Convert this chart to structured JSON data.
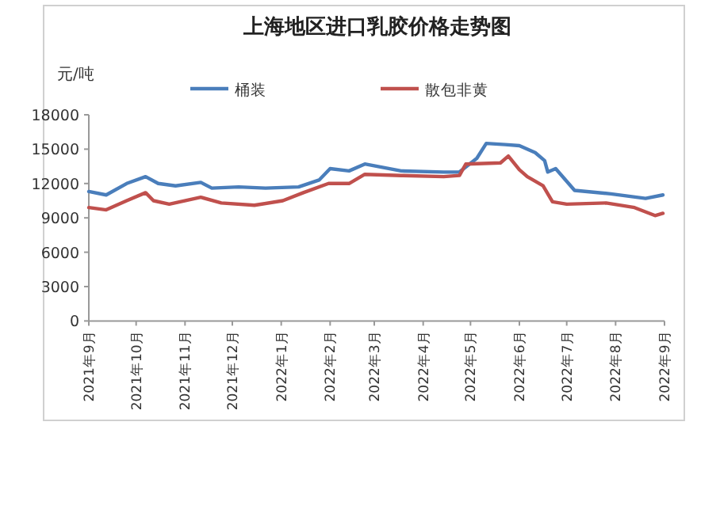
{
  "chart_data": {
    "type": "line",
    "title": "上海地区进口乳胶价格走势图",
    "ylabel": "元/吨",
    "legend": "top",
    "grid": false,
    "marker": "none",
    "line_style": "solid",
    "xlim": [
      "2021-09-01",
      "2022-09-01"
    ],
    "xticks": [
      {
        "value": "2021-09-01",
        "label": "2021年9月"
      },
      {
        "value": "2021-10-01",
        "label": "2021年10月"
      },
      {
        "value": "2021-11-01",
        "label": "2021年11月"
      },
      {
        "value": "2021-12-01",
        "label": "2021年12月"
      },
      {
        "value": "2022-01-01",
        "label": "2022年1月"
      },
      {
        "value": "2022-02-01",
        "label": "2022年2月"
      },
      {
        "value": "2022-03-01",
        "label": "2022年3月"
      },
      {
        "value": "2022-04-01",
        "label": "2022年4月"
      },
      {
        "value": "2022-05-01",
        "label": "2022年5月"
      },
      {
        "value": "2022-06-01",
        "label": "2022年6月"
      },
      {
        "value": "2022-07-01",
        "label": "2022年7月"
      },
      {
        "value": "2022-08-01",
        "label": "2022年8月"
      },
      {
        "value": "2022-09-01",
        "label": "2022年9月"
      }
    ],
    "ylim": [
      0,
      18000
    ],
    "yticks": [
      0,
      3000,
      6000,
      9000,
      12000,
      15000,
      18000
    ],
    "series": [
      {
        "name": "桶装",
        "color": "#4a7ebb",
        "x": [
          "2021-09-01",
          "2021-09-12",
          "2021-09-25",
          "2021-10-07",
          "2021-10-15",
          "2021-10-26",
          "2021-11-11",
          "2021-11-18",
          "2021-12-05",
          "2021-12-22",
          "2022-01-12",
          "2022-01-25",
          "2022-02-01",
          "2022-02-13",
          "2022-02-23",
          "2022-03-18",
          "2022-04-14",
          "2022-04-24",
          "2022-05-05",
          "2022-05-11",
          "2022-05-23",
          "2022-06-01",
          "2022-06-11",
          "2022-06-17",
          "2022-06-19",
          "2022-06-24",
          "2022-07-06",
          "2022-07-29",
          "2022-08-20",
          "2022-08-31"
        ],
        "values": [
          11300,
          11000,
          12000,
          12600,
          12000,
          11800,
          12100,
          11600,
          11700,
          11600,
          11700,
          12300,
          13300,
          13100,
          13700,
          13100,
          13000,
          13000,
          14200,
          15500,
          15400,
          15300,
          14700,
          14000,
          13000,
          13300,
          11400,
          11100,
          10700,
          11000
        ]
      },
      {
        "name": "散包非黄",
        "color": "#c0504d",
        "x": [
          "2021-09-01",
          "2021-09-12",
          "2021-09-25",
          "2021-10-07",
          "2021-10-12",
          "2021-10-22",
          "2021-11-11",
          "2021-11-24",
          "2021-12-15",
          "2022-01-02",
          "2022-01-15",
          "2022-01-31",
          "2022-02-13",
          "2022-02-23",
          "2022-03-18",
          "2022-04-14",
          "2022-04-24",
          "2022-04-28",
          "2022-05-20",
          "2022-05-25",
          "2022-06-01",
          "2022-06-06",
          "2022-06-16",
          "2022-06-22",
          "2022-07-01",
          "2022-07-26",
          "2022-08-13",
          "2022-08-26",
          "2022-08-31"
        ],
        "values": [
          9900,
          9700,
          10500,
          11200,
          10500,
          10200,
          10800,
          10300,
          10100,
          10500,
          11200,
          12000,
          12000,
          12800,
          12700,
          12600,
          12700,
          13700,
          13800,
          14400,
          13200,
          12600,
          11800,
          10400,
          10200,
          10300,
          9900,
          9200,
          9400
        ]
      }
    ]
  }
}
